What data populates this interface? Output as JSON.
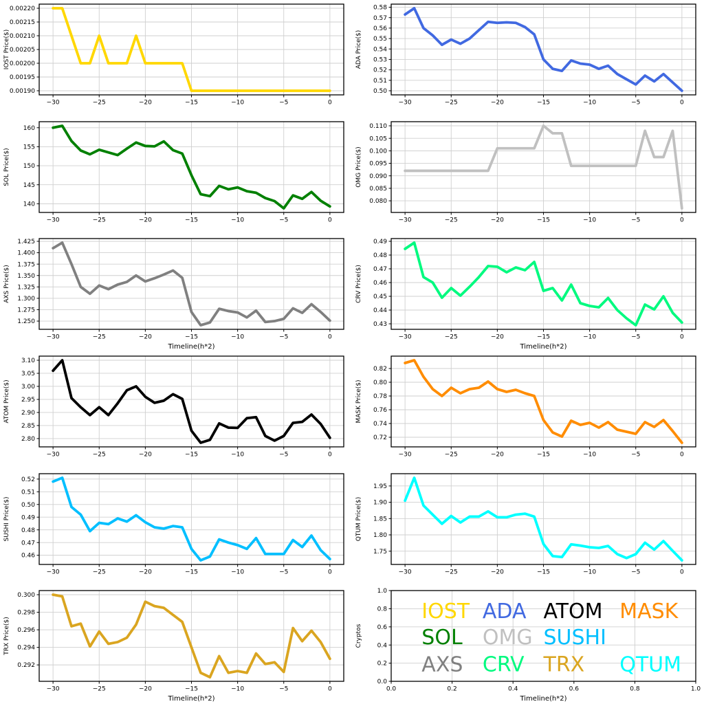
{
  "figure_title": "",
  "chart_data": {
    "type": "line",
    "layout": "6x2-subplot-grid",
    "grid": true,
    "x": [
      -30,
      -29,
      -28,
      -27,
      -26,
      -25,
      -24,
      -23,
      -22,
      -21,
      -20,
      -19,
      -18,
      -17,
      -16,
      -15,
      -14,
      -13,
      -12,
      -11,
      -10,
      -9,
      -8,
      -7,
      -6,
      -5,
      -4,
      -3,
      -2,
      -1,
      0
    ],
    "xlim": [
      -31.5,
      1.5
    ],
    "xticks": [
      -30,
      -25,
      -20,
      -15,
      -10,
      -5,
      0
    ],
    "subplots": [
      {
        "name": "IOST",
        "ylabel": "IOST Price($)",
        "xlabel": "",
        "color": "#FFD700",
        "yticks": [
          0.0019,
          0.00195,
          0.002,
          0.00205,
          0.0021,
          0.00215,
          0.0022
        ],
        "ydecimals": 5,
        "values": [
          0.0022,
          0.0022,
          0.0021,
          0.002,
          0.002,
          0.0021,
          0.002,
          0.002,
          0.002,
          0.0021,
          0.002,
          0.002,
          0.002,
          0.002,
          0.002,
          0.0019,
          0.0019,
          0.0019,
          0.0019,
          0.0019,
          0.0019,
          0.0019,
          0.0019,
          0.0019,
          0.0019,
          0.0019,
          0.0019,
          0.0019,
          0.0019,
          0.0019,
          0.0019
        ]
      },
      {
        "name": "ADA",
        "ylabel": "ADA Price($)",
        "xlabel": "",
        "color": "#4169E1",
        "yticks": [
          0.5,
          0.51,
          0.52,
          0.53,
          0.54,
          0.55,
          0.56,
          0.57,
          0.58
        ],
        "ydecimals": 2,
        "values": [
          0.573,
          0.579,
          0.56,
          0.553,
          0.544,
          0.549,
          0.545,
          0.55,
          0.558,
          0.566,
          0.565,
          0.5655,
          0.565,
          0.561,
          0.554,
          0.53,
          0.521,
          0.519,
          0.529,
          0.526,
          0.525,
          0.521,
          0.524,
          0.516,
          0.511,
          0.506,
          0.5145,
          0.509,
          0.516,
          0.508,
          0.5
        ]
      },
      {
        "name": "SOL",
        "ylabel": "SOL Price($)",
        "xlabel": "",
        "color": "#008000",
        "yticks": [
          140,
          145,
          150,
          155,
          160
        ],
        "ydecimals": 0,
        "values": [
          160.0,
          160.5,
          156.5,
          154.0,
          153.0,
          154.2,
          153.5,
          152.8,
          154.5,
          156.1,
          155.2,
          155.1,
          156.4,
          154.1,
          153.2,
          147.5,
          142.5,
          142.0,
          144.7,
          143.8,
          144.3,
          143.3,
          142.9,
          141.5,
          140.7,
          138.8,
          142.2,
          141.3,
          143.1,
          140.8,
          139.3
        ]
      },
      {
        "name": "OMG",
        "ylabel": "OMG Price($)",
        "xlabel": "",
        "color": "#C0C0C0",
        "yticks": [
          0.08,
          0.085,
          0.09,
          0.095,
          0.1,
          0.105,
          0.11
        ],
        "ydecimals": 3,
        "values": [
          0.092,
          0.092,
          0.092,
          0.092,
          0.092,
          0.092,
          0.092,
          0.092,
          0.092,
          0.092,
          0.101,
          0.101,
          0.101,
          0.101,
          0.101,
          0.11,
          0.107,
          0.107,
          0.094,
          0.094,
          0.094,
          0.094,
          0.094,
          0.094,
          0.094,
          0.094,
          0.108,
          0.0975,
          0.0975,
          0.108,
          0.077
        ]
      },
      {
        "name": "AXS",
        "ylabel": "AXS Price($)",
        "xlabel": "Timeline(h*2)",
        "color": "#808080",
        "yticks": [
          1.25,
          1.275,
          1.3,
          1.325,
          1.35,
          1.375,
          1.4,
          1.425
        ],
        "ydecimals": 3,
        "values": [
          1.41,
          1.422,
          1.375,
          1.325,
          1.31,
          1.328,
          1.32,
          1.33,
          1.336,
          1.35,
          1.337,
          1.344,
          1.352,
          1.361,
          1.345,
          1.27,
          1.241,
          1.247,
          1.277,
          1.272,
          1.269,
          1.258,
          1.273,
          1.248,
          1.25,
          1.255,
          1.278,
          1.268,
          1.287,
          1.27,
          1.251
        ]
      },
      {
        "name": "CRV",
        "ylabel": "CRV Price($)",
        "xlabel": "Timeline(h*2)",
        "color": "#00FA7F",
        "yticks": [
          0.43,
          0.44,
          0.45,
          0.46,
          0.47,
          0.48,
          0.49
        ],
        "ydecimals": 2,
        "values": [
          0.4845,
          0.489,
          0.464,
          0.46,
          0.449,
          0.456,
          0.4505,
          0.457,
          0.464,
          0.472,
          0.4715,
          0.4675,
          0.471,
          0.469,
          0.475,
          0.454,
          0.456,
          0.447,
          0.4585,
          0.445,
          0.443,
          0.442,
          0.4488,
          0.44,
          0.434,
          0.429,
          0.444,
          0.4405,
          0.45,
          0.438,
          0.431
        ]
      },
      {
        "name": "ATOM",
        "ylabel": "ATOM Price($)",
        "xlabel": "",
        "color": "#000000",
        "yticks": [
          2.8,
          2.85,
          2.9,
          2.95,
          3.0,
          3.05,
          3.1
        ],
        "ydecimals": 2,
        "values": [
          3.06,
          3.1,
          2.955,
          2.92,
          2.89,
          2.92,
          2.89,
          2.935,
          2.985,
          3.0,
          2.96,
          2.937,
          2.945,
          2.97,
          2.952,
          2.83,
          2.784,
          2.795,
          2.858,
          2.842,
          2.841,
          2.878,
          2.882,
          2.81,
          2.792,
          2.81,
          2.86,
          2.864,
          2.892,
          2.856,
          2.803
        ]
      },
      {
        "name": "MASK",
        "ylabel": "MASK Price($)",
        "xlabel": "",
        "color": "#FF8C00",
        "yticks": [
          0.72,
          0.74,
          0.76,
          0.78,
          0.8,
          0.82
        ],
        "ydecimals": 2,
        "values": [
          0.828,
          0.832,
          0.808,
          0.79,
          0.78,
          0.792,
          0.784,
          0.79,
          0.792,
          0.801,
          0.79,
          0.786,
          0.789,
          0.784,
          0.78,
          0.745,
          0.727,
          0.721,
          0.744,
          0.738,
          0.741,
          0.734,
          0.742,
          0.731,
          0.728,
          0.725,
          0.742,
          0.735,
          0.745,
          0.729,
          0.712
        ]
      },
      {
        "name": "SUSHI",
        "ylabel": "SUSHI Price($)",
        "xlabel": "",
        "color": "#00BFFF",
        "yticks": [
          0.46,
          0.47,
          0.48,
          0.49,
          0.5,
          0.51,
          0.52
        ],
        "ydecimals": 2,
        "values": [
          0.518,
          0.521,
          0.498,
          0.492,
          0.479,
          0.4855,
          0.4845,
          0.489,
          0.4865,
          0.4915,
          0.486,
          0.482,
          0.481,
          0.483,
          0.482,
          0.465,
          0.456,
          0.459,
          0.4725,
          0.47,
          0.468,
          0.465,
          0.4735,
          0.461,
          0.461,
          0.461,
          0.472,
          0.4665,
          0.4755,
          0.464,
          0.457
        ]
      },
      {
        "name": "QTUM",
        "ylabel": "QTUM Price($)",
        "xlabel": "",
        "color": "#00FFFF",
        "yticks": [
          1.75,
          1.8,
          1.85,
          1.9,
          1.95
        ],
        "ydecimals": 2,
        "values": [
          1.905,
          1.975,
          1.89,
          1.862,
          1.834,
          1.858,
          1.838,
          1.856,
          1.856,
          1.872,
          1.854,
          1.854,
          1.862,
          1.865,
          1.856,
          1.772,
          1.735,
          1.732,
          1.771,
          1.767,
          1.762,
          1.76,
          1.766,
          1.741,
          1.729,
          1.741,
          1.776,
          1.755,
          1.781,
          1.751,
          1.722
        ]
      },
      {
        "name": "TRX",
        "ylabel": "TRX Price($)",
        "xlabel": "Timeline(h*2)",
        "color": "#DAA520",
        "yticks": [
          0.292,
          0.294,
          0.296,
          0.298,
          0.3
        ],
        "ydecimals": 3,
        "values": [
          0.3,
          0.2998,
          0.2964,
          0.2967,
          0.2941,
          0.2958,
          0.2944,
          0.2946,
          0.2951,
          0.2966,
          0.2992,
          0.2987,
          0.2985,
          0.2977,
          0.2969,
          0.294,
          0.2911,
          0.2906,
          0.293,
          0.2911,
          0.2913,
          0.2911,
          0.2933,
          0.2921,
          0.2923,
          0.2912,
          0.2962,
          0.2947,
          0.2959,
          0.2946,
          0.2927
        ]
      }
    ],
    "legend_panel": {
      "ylabel": "Cryptos",
      "xlabel": "Timeline(h*2)",
      "xticks": [
        0.0,
        0.2,
        0.4,
        0.6,
        0.8,
        1.0
      ],
      "yticks": [
        0.0,
        0.2,
        0.4,
        0.6,
        0.8,
        1.0
      ],
      "tick_decimals": 1,
      "entries": [
        {
          "label": "IOST",
          "color": "#FFD700",
          "x": 0.1,
          "y": 0.77
        },
        {
          "label": "ADA",
          "color": "#4169E1",
          "x": 0.3,
          "y": 0.77
        },
        {
          "label": "ATOM",
          "color": "#000000",
          "x": 0.5,
          "y": 0.77
        },
        {
          "label": "MASK",
          "color": "#FF8C00",
          "x": 0.75,
          "y": 0.77
        },
        {
          "label": "SOL",
          "color": "#008000",
          "x": 0.1,
          "y": 0.48
        },
        {
          "label": "OMG",
          "color": "#C0C0C0",
          "x": 0.3,
          "y": 0.48
        },
        {
          "label": "SUSHI",
          "color": "#00BFFF",
          "x": 0.5,
          "y": 0.48
        },
        {
          "label": "AXS",
          "color": "#808080",
          "x": 0.1,
          "y": 0.18
        },
        {
          "label": "CRV",
          "color": "#00FA7F",
          "x": 0.3,
          "y": 0.18
        },
        {
          "label": "TRX",
          "color": "#DAA520",
          "x": 0.5,
          "y": 0.18
        },
        {
          "label": "QTUM",
          "color": "#00FFFF",
          "x": 0.75,
          "y": 0.18
        }
      ]
    }
  }
}
